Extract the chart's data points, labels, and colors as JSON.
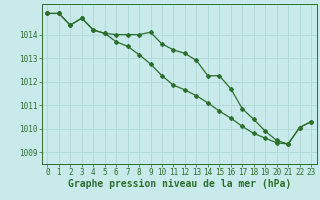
{
  "background_color": "#c8eaea",
  "grid_color": "#b0d8d8",
  "line_color": "#2d6e2d",
  "title": "Graphe pression niveau de la mer (hPa)",
  "xlim": [
    -0.5,
    23.5
  ],
  "ylim": [
    1008.5,
    1015.3
  ],
  "yticks": [
    1009,
    1010,
    1011,
    1012,
    1013,
    1014
  ],
  "xticks": [
    0,
    1,
    2,
    3,
    4,
    5,
    6,
    7,
    8,
    9,
    10,
    11,
    12,
    13,
    14,
    15,
    16,
    17,
    18,
    19,
    20,
    21,
    22,
    23
  ],
  "line1_x": [
    0,
    1,
    2,
    3,
    4,
    5,
    6,
    7,
    8,
    9,
    10,
    11,
    12,
    13,
    14,
    15,
    16,
    17,
    18,
    19,
    20,
    21,
    22,
    23
  ],
  "line1_y": [
    1014.9,
    1014.9,
    1014.4,
    1014.7,
    1014.2,
    1014.05,
    1014.0,
    1014.0,
    1014.0,
    1014.1,
    1013.6,
    1013.35,
    1013.2,
    1012.9,
    1012.25,
    1012.25,
    1011.7,
    1010.85,
    1010.4,
    1009.9,
    1009.5,
    1009.35,
    1010.05,
    1010.3
  ],
  "line2_x": [
    0,
    1,
    2,
    3,
    4,
    5,
    6,
    7,
    8,
    9,
    10,
    11,
    12,
    13,
    14,
    15,
    16,
    17,
    18,
    19,
    20,
    21,
    22,
    23
  ],
  "line2_y": [
    1014.9,
    1014.9,
    1014.4,
    1014.7,
    1014.2,
    1014.05,
    1013.7,
    1013.5,
    1013.15,
    1012.75,
    1012.25,
    1011.85,
    1011.65,
    1011.4,
    1011.1,
    1010.75,
    1010.45,
    1010.1,
    1009.8,
    1009.6,
    1009.4,
    1009.35,
    1010.05,
    1010.3
  ],
  "marker": "D",
  "marker_size": 2.0,
  "line_width": 0.9,
  "title_fontsize": 7,
  "tick_fontsize": 5.5
}
